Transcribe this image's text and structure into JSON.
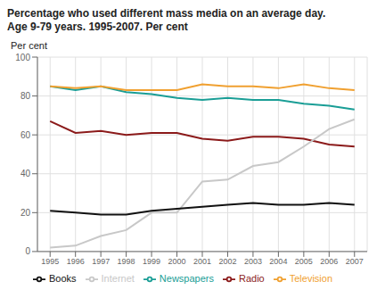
{
  "chart_data": {
    "type": "line",
    "title": "Percentage who used different mass media on an average day.",
    "subtitle": "Age 9-79 years. 1995-2007. Per cent",
    "y_label": "Per cent",
    "x": [
      1995,
      1996,
      1997,
      1998,
      1999,
      2000,
      2001,
      2002,
      2003,
      2004,
      2005,
      2006,
      2007
    ],
    "xlim": [
      1994.5,
      2007.5
    ],
    "xticks": [
      1995,
      1996,
      1997,
      1998,
      1999,
      2000,
      2001,
      2002,
      2003,
      2004,
      2005,
      2006,
      2007
    ],
    "ylim": [
      0,
      100
    ],
    "yticks": [
      0,
      20,
      40,
      60,
      80,
      100
    ],
    "grid": true,
    "legend": "bottom",
    "series": [
      {
        "name": "Newspapers",
        "color": "#1a9e96",
        "values": [
          85,
          83,
          85,
          82,
          81,
          79,
          78,
          79,
          78,
          78,
          76,
          75,
          73
        ]
      },
      {
        "name": "Television",
        "color": "#f0a030",
        "values": [
          85,
          84,
          85,
          83,
          83,
          83,
          86,
          85,
          85,
          84,
          86,
          84,
          83
        ]
      },
      {
        "name": "Radio",
        "color": "#8b1a1a",
        "values": [
          67,
          61,
          62,
          60,
          61,
          61,
          58,
          57,
          59,
          59,
          58,
          55,
          54
        ]
      },
      {
        "name": "Internet",
        "color": "#c8c8c8",
        "values": [
          2,
          3,
          8,
          11,
          20,
          20,
          36,
          37,
          44,
          46,
          54,
          63,
          68
        ]
      },
      {
        "name": "Books",
        "color": "#111111",
        "values": [
          21,
          20,
          19,
          19,
          21,
          22,
          23,
          24,
          25,
          24,
          24,
          25,
          24
        ]
      }
    ]
  }
}
